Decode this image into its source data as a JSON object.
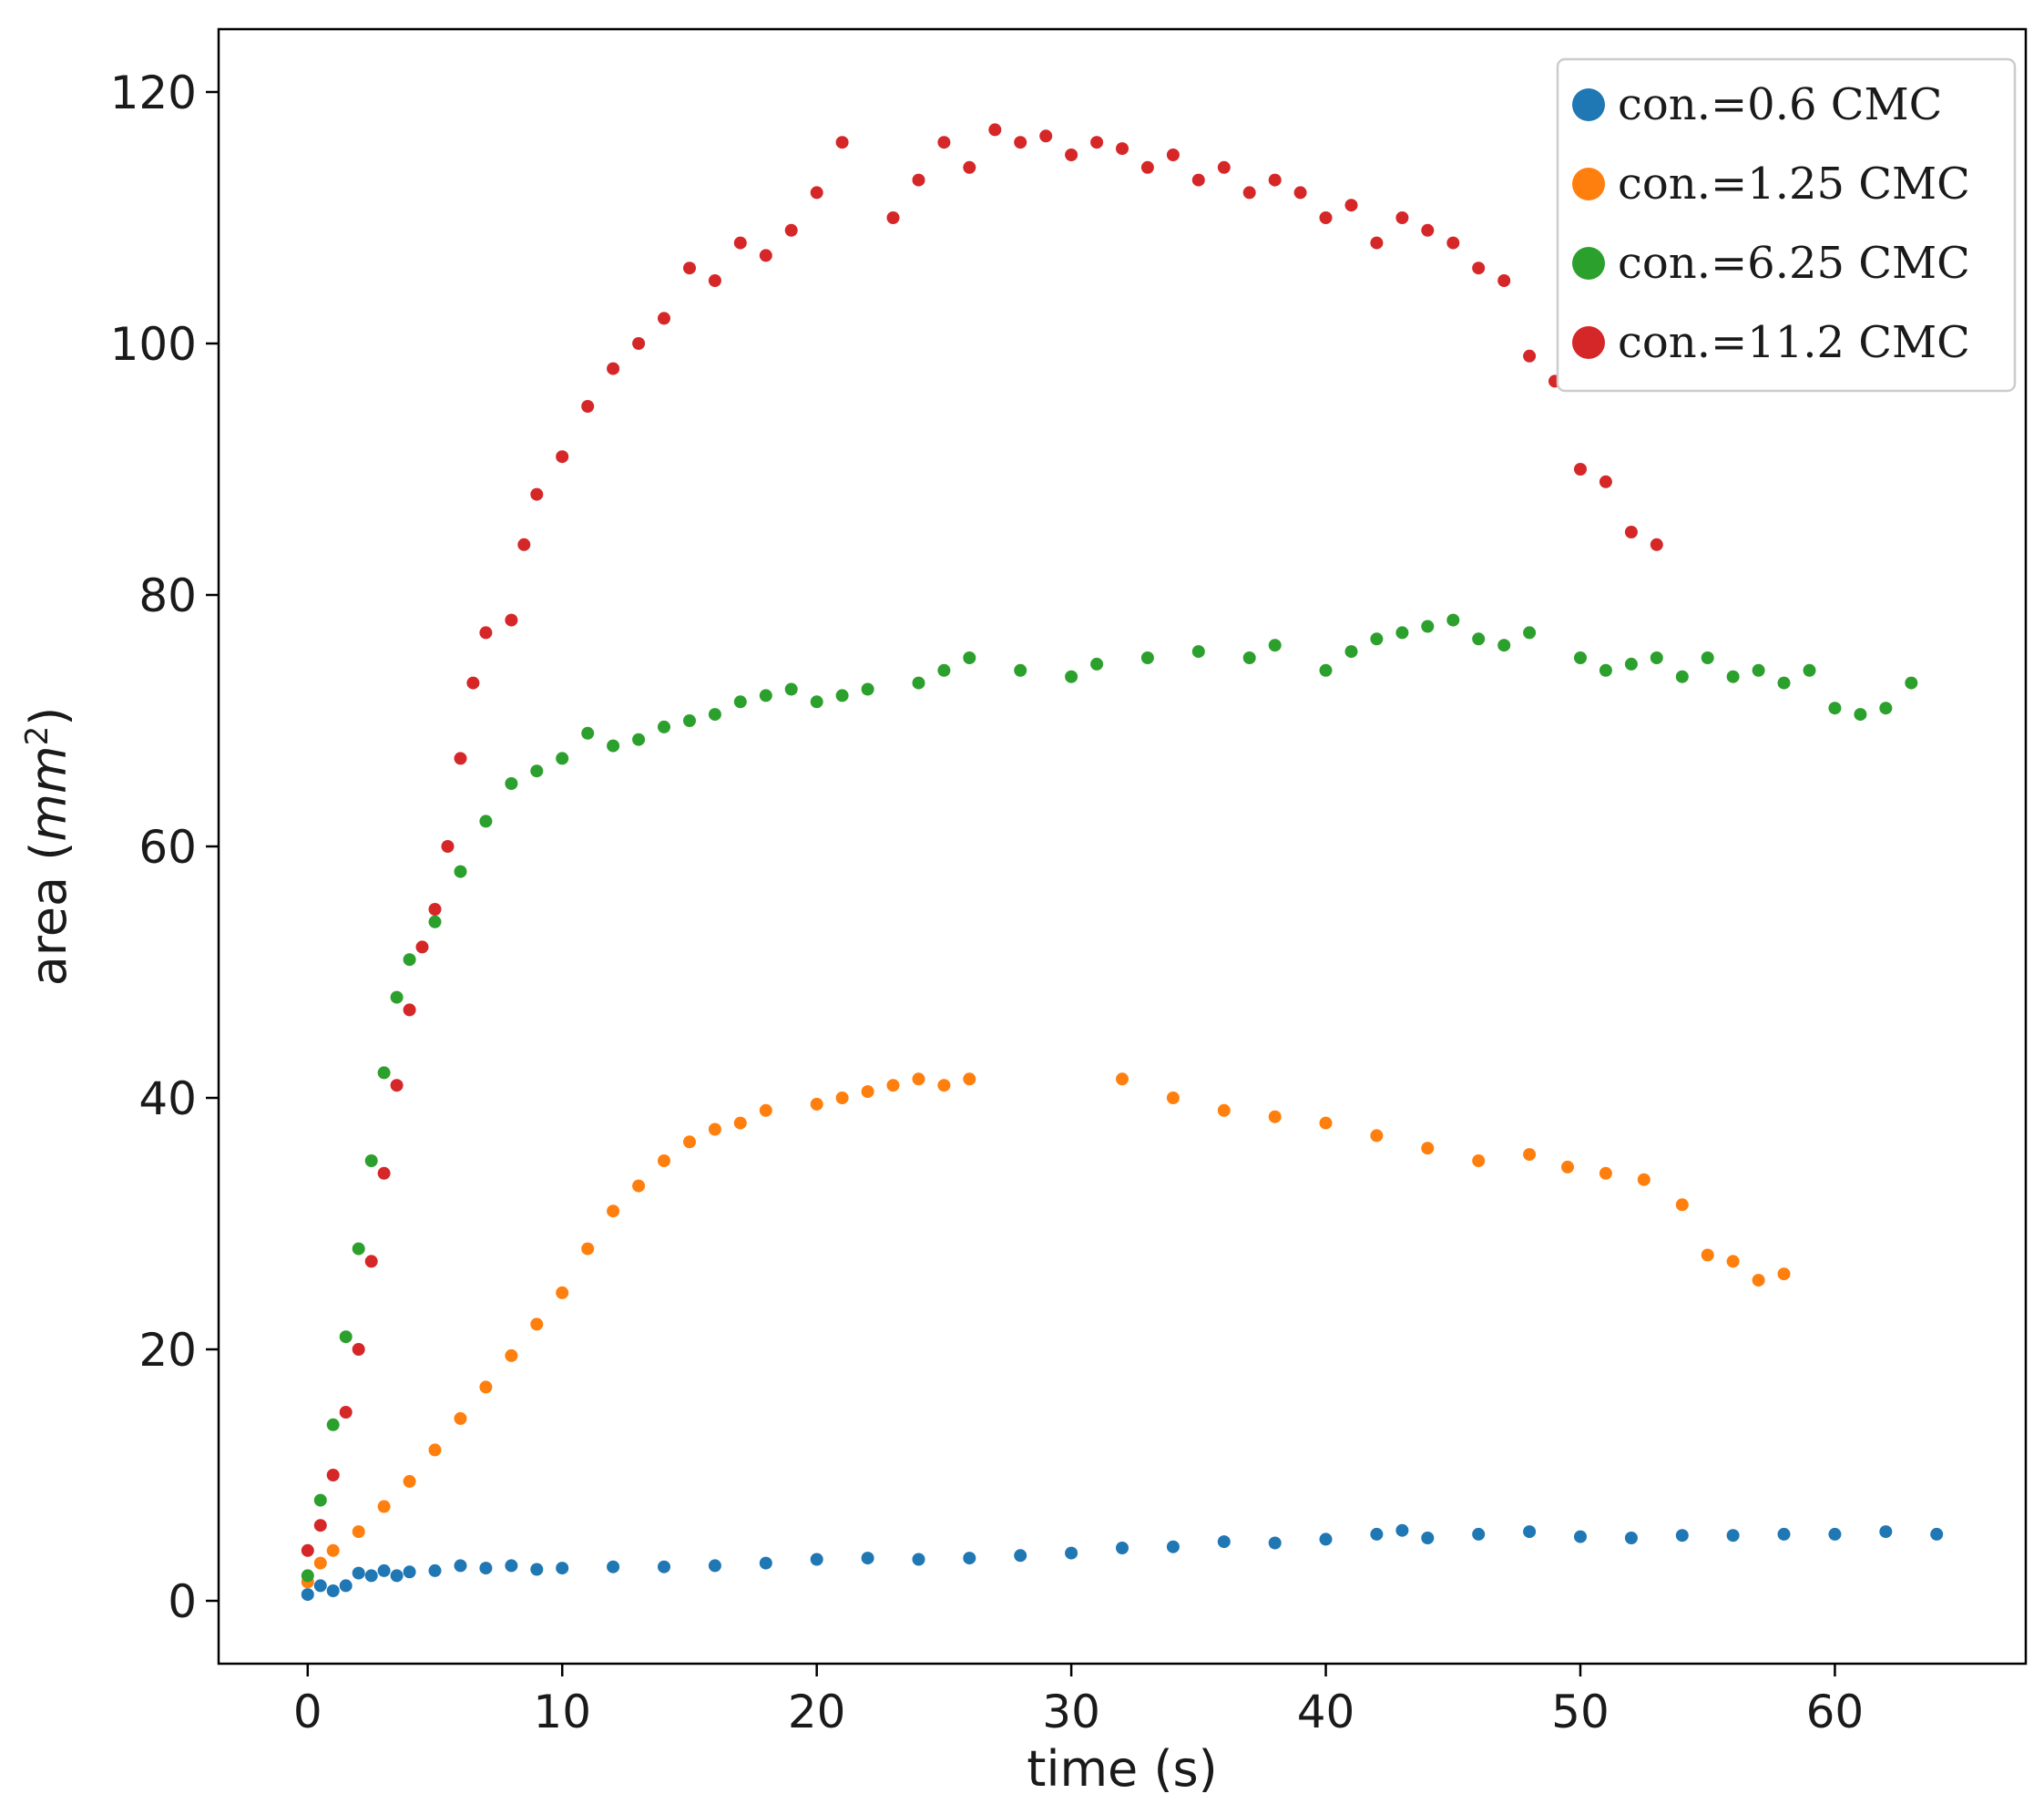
{
  "chart_data": {
    "type": "scatter",
    "title": "",
    "xlabel": "time (s)",
    "ylabel_main": "area (",
    "ylabel_unit": "mm",
    "ylabel_exp": "2",
    "ylabel_close": ")",
    "xlim": [
      -3.5,
      67.5
    ],
    "ylim": [
      -5,
      125
    ],
    "xticks": [
      0,
      10,
      20,
      30,
      40,
      50,
      60
    ],
    "yticks": [
      0,
      20,
      40,
      60,
      80,
      100,
      120
    ],
    "grid": false,
    "legend_position": "top-right",
    "series": [
      {
        "name": "con.=0.6 CMC",
        "color": "#1f77b4",
        "points": [
          [
            0,
            0.5
          ],
          [
            0.5,
            1.2
          ],
          [
            1,
            0.8
          ],
          [
            1.5,
            1.2
          ],
          [
            2,
            2.2
          ],
          [
            2.5,
            2.0
          ],
          [
            3,
            2.4
          ],
          [
            3.5,
            2.0
          ],
          [
            4,
            2.3
          ],
          [
            5,
            2.4
          ],
          [
            6,
            2.8
          ],
          [
            7,
            2.6
          ],
          [
            8,
            2.8
          ],
          [
            9,
            2.5
          ],
          [
            10,
            2.6
          ],
          [
            12,
            2.7
          ],
          [
            14,
            2.7
          ],
          [
            16,
            2.8
          ],
          [
            18,
            3.0
          ],
          [
            20,
            3.3
          ],
          [
            22,
            3.4
          ],
          [
            24,
            3.3
          ],
          [
            26,
            3.4
          ],
          [
            28,
            3.6
          ],
          [
            30,
            3.8
          ],
          [
            32,
            4.2
          ],
          [
            34,
            4.3
          ],
          [
            36,
            4.7
          ],
          [
            38,
            4.6
          ],
          [
            40,
            4.9
          ],
          [
            42,
            5.3
          ],
          [
            43,
            5.6
          ],
          [
            44,
            5.0
          ],
          [
            46,
            5.3
          ],
          [
            48,
            5.5
          ],
          [
            50,
            5.1
          ],
          [
            52,
            5.0
          ],
          [
            54,
            5.2
          ],
          [
            56,
            5.2
          ],
          [
            58,
            5.3
          ],
          [
            60,
            5.3
          ],
          [
            62,
            5.5
          ],
          [
            64,
            5.3
          ]
        ]
      },
      {
        "name": "con.=1.25 CMC",
        "color": "#ff7f0e",
        "points": [
          [
            0,
            1.5
          ],
          [
            0.5,
            3.0
          ],
          [
            1,
            4.0
          ],
          [
            2,
            5.5
          ],
          [
            3,
            7.5
          ],
          [
            4,
            9.5
          ],
          [
            5,
            12.0
          ],
          [
            6,
            14.5
          ],
          [
            7,
            17.0
          ],
          [
            8,
            19.5
          ],
          [
            9,
            22.0
          ],
          [
            10,
            24.5
          ],
          [
            11,
            28.0
          ],
          [
            12,
            31.0
          ],
          [
            13,
            33.0
          ],
          [
            14,
            35.0
          ],
          [
            15,
            36.5
          ],
          [
            16,
            37.5
          ],
          [
            17,
            38.0
          ],
          [
            18,
            39.0
          ],
          [
            20,
            39.5
          ],
          [
            21,
            40.0
          ],
          [
            22,
            40.5
          ],
          [
            23,
            41.0
          ],
          [
            24,
            41.5
          ],
          [
            25,
            41.0
          ],
          [
            26,
            41.5
          ],
          [
            32,
            41.5
          ],
          [
            34,
            40.0
          ],
          [
            36,
            39.0
          ],
          [
            38,
            38.5
          ],
          [
            40,
            38.0
          ],
          [
            42,
            37.0
          ],
          [
            44,
            36.0
          ],
          [
            46,
            35.0
          ],
          [
            48,
            35.5
          ],
          [
            49.5,
            34.5
          ],
          [
            51,
            34.0
          ],
          [
            52.5,
            33.5
          ],
          [
            54,
            31.5
          ],
          [
            55,
            27.5
          ],
          [
            56,
            27.0
          ],
          [
            57,
            25.5
          ],
          [
            58,
            26.0
          ]
        ]
      },
      {
        "name": "con.=6.25 CMC",
        "color": "#2ca02c",
        "points": [
          [
            0,
            2.0
          ],
          [
            0.5,
            8.0
          ],
          [
            1,
            14.0
          ],
          [
            1.5,
            21.0
          ],
          [
            2,
            28.0
          ],
          [
            2.5,
            35.0
          ],
          [
            3,
            42.0
          ],
          [
            3.5,
            48.0
          ],
          [
            4,
            51.0
          ],
          [
            5,
            54.0
          ],
          [
            6,
            58.0
          ],
          [
            7,
            62.0
          ],
          [
            8,
            65.0
          ],
          [
            9,
            66.0
          ],
          [
            10,
            67.0
          ],
          [
            11,
            69.0
          ],
          [
            12,
            68.0
          ],
          [
            13,
            68.5
          ],
          [
            14,
            69.5
          ],
          [
            15,
            70.0
          ],
          [
            16,
            70.5
          ],
          [
            17,
            71.5
          ],
          [
            18,
            72.0
          ],
          [
            19,
            72.5
          ],
          [
            20,
            71.5
          ],
          [
            21,
            72.0
          ],
          [
            22,
            72.5
          ],
          [
            24,
            73.0
          ],
          [
            25,
            74.0
          ],
          [
            26,
            75.0
          ],
          [
            28,
            74.0
          ],
          [
            30,
            73.5
          ],
          [
            31,
            74.5
          ],
          [
            33,
            75.0
          ],
          [
            35,
            75.5
          ],
          [
            37,
            75.0
          ],
          [
            38,
            76.0
          ],
          [
            40,
            74.0
          ],
          [
            41,
            75.5
          ],
          [
            42,
            76.5
          ],
          [
            43,
            77.0
          ],
          [
            44,
            77.5
          ],
          [
            45,
            78.0
          ],
          [
            46,
            76.5
          ],
          [
            47,
            76.0
          ],
          [
            48,
            77.0
          ],
          [
            50,
            75.0
          ],
          [
            51,
            74.0
          ],
          [
            52,
            74.5
          ],
          [
            53,
            75.0
          ],
          [
            54,
            73.5
          ],
          [
            55,
            75.0
          ],
          [
            56,
            73.5
          ],
          [
            57,
            74.0
          ],
          [
            58,
            73.0
          ],
          [
            59,
            74.0
          ],
          [
            60,
            71.0
          ],
          [
            61,
            70.5
          ],
          [
            62,
            71.0
          ],
          [
            63,
            73.0
          ]
        ]
      },
      {
        "name": "con.=11.2 CMC",
        "color": "#d62728",
        "points": [
          [
            0,
            4.0
          ],
          [
            0.5,
            6.0
          ],
          [
            1,
            10.0
          ],
          [
            1.5,
            15.0
          ],
          [
            2,
            20.0
          ],
          [
            2.5,
            27.0
          ],
          [
            3,
            34.0
          ],
          [
            3.5,
            41.0
          ],
          [
            4,
            47.0
          ],
          [
            4.5,
            52.0
          ],
          [
            5,
            55.0
          ],
          [
            5.5,
            60.0
          ],
          [
            6,
            67.0
          ],
          [
            6.5,
            73.0
          ],
          [
            7,
            77.0
          ],
          [
            8,
            78.0
          ],
          [
            8.5,
            84.0
          ],
          [
            9,
            88.0
          ],
          [
            10,
            91.0
          ],
          [
            11,
            95.0
          ],
          [
            12,
            98.0
          ],
          [
            13,
            100.0
          ],
          [
            14,
            102.0
          ],
          [
            15,
            106.0
          ],
          [
            16,
            105.0
          ],
          [
            17,
            108.0
          ],
          [
            18,
            107.0
          ],
          [
            19,
            109.0
          ],
          [
            20,
            112.0
          ],
          [
            21,
            116.0
          ],
          [
            23,
            110.0
          ],
          [
            24,
            113.0
          ],
          [
            25,
            116.0
          ],
          [
            26,
            114.0
          ],
          [
            27,
            117.0
          ],
          [
            28,
            116.0
          ],
          [
            29,
            116.5
          ],
          [
            30,
            115.0
          ],
          [
            31,
            116.0
          ],
          [
            32,
            115.5
          ],
          [
            33,
            114.0
          ],
          [
            34,
            115.0
          ],
          [
            35,
            113.0
          ],
          [
            36,
            114.0
          ],
          [
            37,
            112.0
          ],
          [
            38,
            113.0
          ],
          [
            39,
            112.0
          ],
          [
            40,
            110.0
          ],
          [
            41,
            111.0
          ],
          [
            42,
            108.0
          ],
          [
            43,
            110.0
          ],
          [
            44,
            109.0
          ],
          [
            45,
            108.0
          ],
          [
            46,
            106.0
          ],
          [
            47,
            105.0
          ],
          [
            48,
            99.0
          ],
          [
            49,
            97.0
          ],
          [
            50,
            90.0
          ],
          [
            51,
            89.0
          ],
          [
            52,
            85.0
          ],
          [
            53,
            84.0
          ]
        ]
      }
    ]
  }
}
